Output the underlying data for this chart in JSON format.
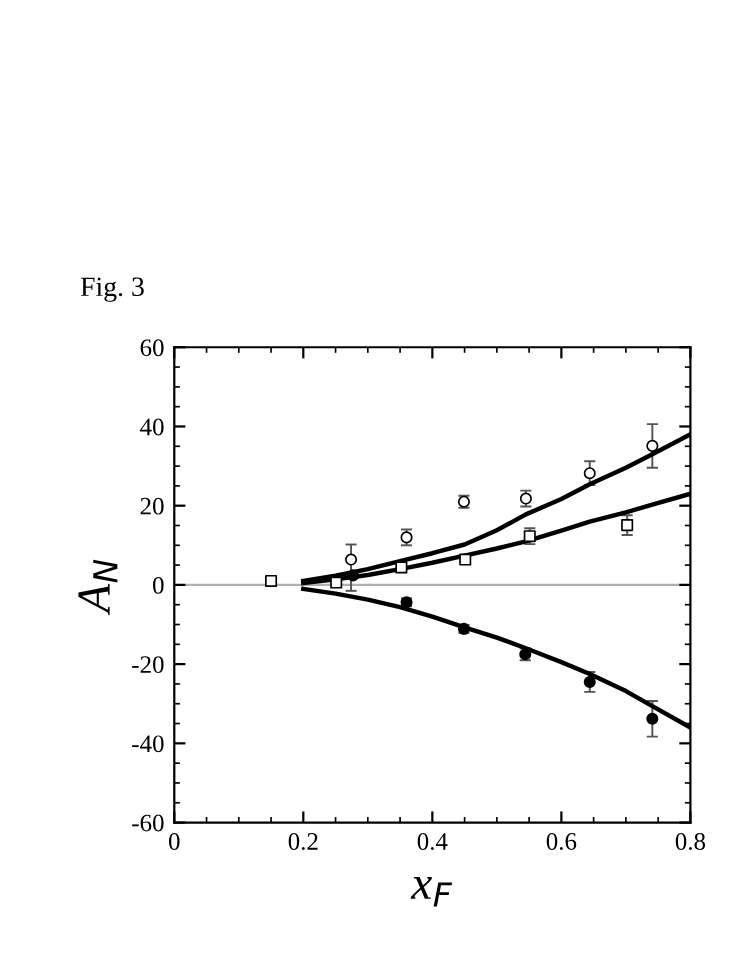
{
  "chart_data": {
    "type": "scatter",
    "xlabel": "x$_{F}$",
    "ylabel": "A$_{N}$",
    "annotations": [
      "Fig. 3"
    ],
    "xlim": [
      0,
      0.8
    ],
    "ylim": [
      -60,
      60
    ],
    "xticks": [
      0,
      0.2,
      0.4,
      0.6,
      0.8
    ],
    "yticks": [
      -60,
      -40,
      -20,
      0,
      20,
      40,
      60
    ],
    "grid": false,
    "legend": false,
    "ref_lines": [
      {
        "axis": "y",
        "value": 0,
        "color": "#b0b0b0"
      }
    ],
    "series": [
      {
        "marker": "circle",
        "color": "#ffffff",
        "x": [
          0.274,
          0.36,
          0.449,
          0.545,
          0.644,
          0.741
        ],
        "values": [
          6.4,
          12,
          21,
          21.8,
          28.2,
          35.1
        ],
        "errors": [
          [
            -1.5,
            10.2
          ],
          2,
          1.5,
          2,
          3,
          5.5
        ]
      },
      {
        "marker": "square",
        "color": "#ffffff",
        "x": [
          0.15,
          0.251,
          0.352,
          0.451,
          0.551,
          0.702
        ],
        "values": [
          1,
          0.6,
          4.4,
          6.4,
          12.3,
          15.1
        ],
        "errors": [
          null,
          null,
          null,
          null,
          2,
          2.5
        ]
      },
      {
        "marker": "circle",
        "color": "#000000",
        "x": [
          0.277,
          0.36,
          0.449,
          0.544,
          0.644,
          0.741
        ],
        "values": [
          2.4,
          -4.4,
          -11.1,
          -17.5,
          -24.5,
          -33.8
        ],
        "errors": [
          null,
          1,
          1,
          1.5,
          2.5,
          4.5
        ]
      },
      {
        "type": "line",
        "color": "#000000",
        "x": [
          0.2,
          0.25,
          0.3,
          0.35,
          0.4,
          0.45,
          0.5,
          0.545,
          0.6,
          0.644,
          0.7,
          0.741,
          0.8
        ],
        "values": [
          1,
          2.3,
          4,
          6,
          8,
          10.2,
          13.8,
          17.8,
          21.7,
          25.4,
          29.6,
          33,
          38
        ]
      },
      {
        "type": "line",
        "color": "#000000",
        "x": [
          0.2,
          0.25,
          0.3,
          0.35,
          0.4,
          0.45,
          0.5,
          0.545,
          0.6,
          0.644,
          0.7,
          0.741,
          0.8
        ],
        "values": [
          0.5,
          1.4,
          2.5,
          4,
          5.6,
          7.4,
          9.2,
          11,
          13.7,
          16,
          18.3,
          20.3,
          23
        ]
      },
      {
        "type": "line",
        "color": "#000000",
        "x": [
          0.2,
          0.25,
          0.3,
          0.35,
          0.4,
          0.45,
          0.5,
          0.545,
          0.6,
          0.644,
          0.7,
          0.741,
          0.8
        ],
        "values": [
          -1,
          -2.2,
          -3.7,
          -5.6,
          -8,
          -10.7,
          -13.3,
          -16,
          -19.5,
          -22.5,
          -26.8,
          -30.6,
          -36
        ]
      }
    ]
  }
}
